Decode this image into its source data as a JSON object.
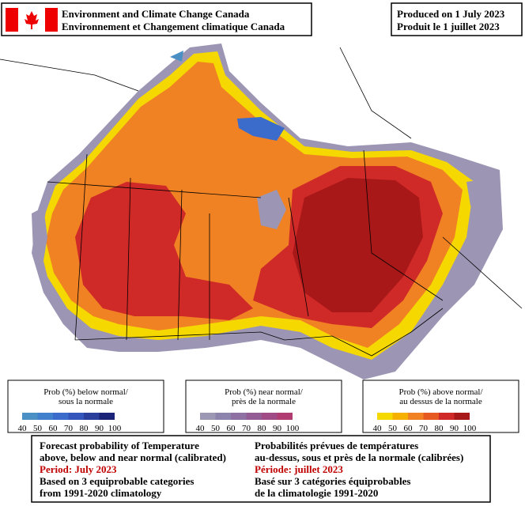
{
  "header": {
    "agency_en": "Environment and Climate Change Canada",
    "agency_fr": "Environnement et Changement climatique Canada",
    "produced_en": "Produced on 1 July 2023",
    "produced_fr": "Produit le 1 juillet 2023"
  },
  "legends": [
    {
      "title_1": "Prob (%) below normal/",
      "title_2": "sous la normale",
      "labels": [
        40,
        50,
        60,
        70,
        80,
        90,
        100
      ],
      "colors": [
        "#4a90c4",
        "#4080cc",
        "#3b6ccc",
        "#3456bc",
        "#2a3e9c",
        "#1b2378"
      ]
    },
    {
      "title_1": "Prob (%) near normal/",
      "title_2": "près de la normale",
      "labels": [
        40,
        50,
        60,
        70,
        80,
        90,
        100
      ],
      "colors": [
        "#9c98b4",
        "#8c84ac",
        "#8e70a2",
        "#945c94",
        "#a04a86",
        "#b03c72"
      ]
    },
    {
      "title_1": "Prob (%) above normal/",
      "title_2": "au dessus de la normale",
      "labels": [
        40,
        50,
        60,
        70,
        80,
        90,
        100
      ],
      "colors": [
        "#f5d800",
        "#f5b000",
        "#f08224",
        "#e65a22",
        "#d02a28",
        "#a81818"
      ]
    }
  ],
  "footer": {
    "left": [
      "Forecast probability of Temperature",
      "above, below and near normal (calibrated)",
      "Period: July 2023",
      "Based on 3 equiprobable categories",
      " from 1991-2020 climatology"
    ],
    "right": [
      "Probabilités prévues de températures",
      "au-dessus, sous et près de la normale (calibrées)",
      "Période: juillet 2023",
      "Basé sur 3 catégories équiprobables",
      "de la climatologie 1991-2020"
    ]
  }
}
